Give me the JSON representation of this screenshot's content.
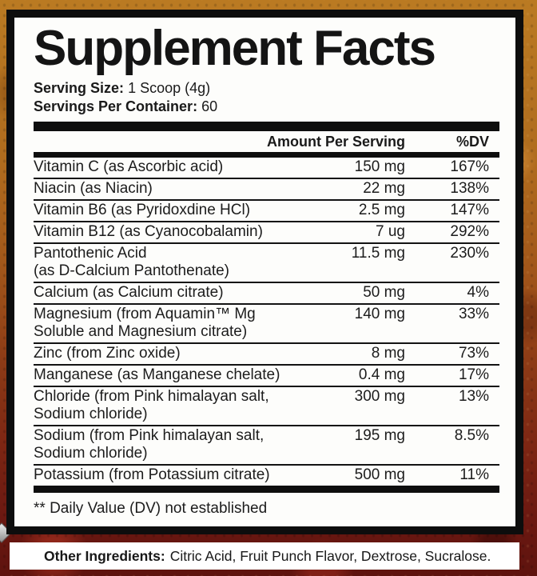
{
  "colors": {
    "panel_border": "#0d0d0d",
    "panel_bg": "#fdfdfb",
    "bg_top_orange": "#ba7a22",
    "bg_bottom_red": "#5e130e",
    "strip_bg": "#ffffff",
    "text": "#1a1a1a"
  },
  "panel": {
    "title": "Supplement Facts",
    "serving_size_label": "Serving Size:",
    "serving_size_value": "1 Scoop (4g)",
    "servings_label": "Servings Per Container:",
    "servings_value": "60",
    "columns": {
      "amount": "Amount Per Serving",
      "dv": "%DV"
    },
    "rows": [
      {
        "name": "Vitamin C (as Ascorbic acid)",
        "amount": "150 mg",
        "dv": "167%"
      },
      {
        "name": "Niacin (as Niacin)",
        "amount": "22 mg",
        "dv": "138%"
      },
      {
        "name": "Vitamin B6 (as Pyridoxdine HCl)",
        "amount": "2.5 mg",
        "dv": "147%"
      },
      {
        "name": "Vitamin B12 (as Cyanocobalamin)",
        "amount": "7 ug",
        "dv": "292%"
      },
      {
        "name": "Pantothenic Acid",
        "name2": "(as D-Calcium Pantothenate)",
        "amount": "11.5 mg",
        "dv": "230%"
      },
      {
        "name": "Calcium (as Calcium citrate)",
        "amount": "50 mg",
        "dv": "4%"
      },
      {
        "name": "Magnesium (from Aquamin™ Mg",
        "name2": "Soluble and Magnesium citrate)",
        "amount": "140 mg",
        "dv": "33%"
      },
      {
        "name": "Zinc (from Zinc oxide)",
        "amount": "8 mg",
        "dv": "73%"
      },
      {
        "name": "Manganese (as Manganese chelate)",
        "amount": "0.4 mg",
        "dv": "17%"
      },
      {
        "name": "Chloride (from Pink himalayan salt,",
        "name2": "Sodium chloride)",
        "amount": "300 mg",
        "dv": "13%"
      },
      {
        "name": "Sodium (from Pink himalayan salt,",
        "name2": "Sodium chloride)",
        "amount": "195 mg",
        "dv": "8.5%"
      },
      {
        "name": "Potassium (from Potassium citrate)",
        "amount": "500 mg",
        "dv": "11%"
      }
    ],
    "footnote": "** Daily Value (DV) not established"
  },
  "other_ingredients": {
    "label": "Other Ingredients:",
    "value": "Citric Acid, Fruit Punch Flavor, Dextrose, Sucralose."
  },
  "icons": {
    "gem": "gem-icon"
  }
}
